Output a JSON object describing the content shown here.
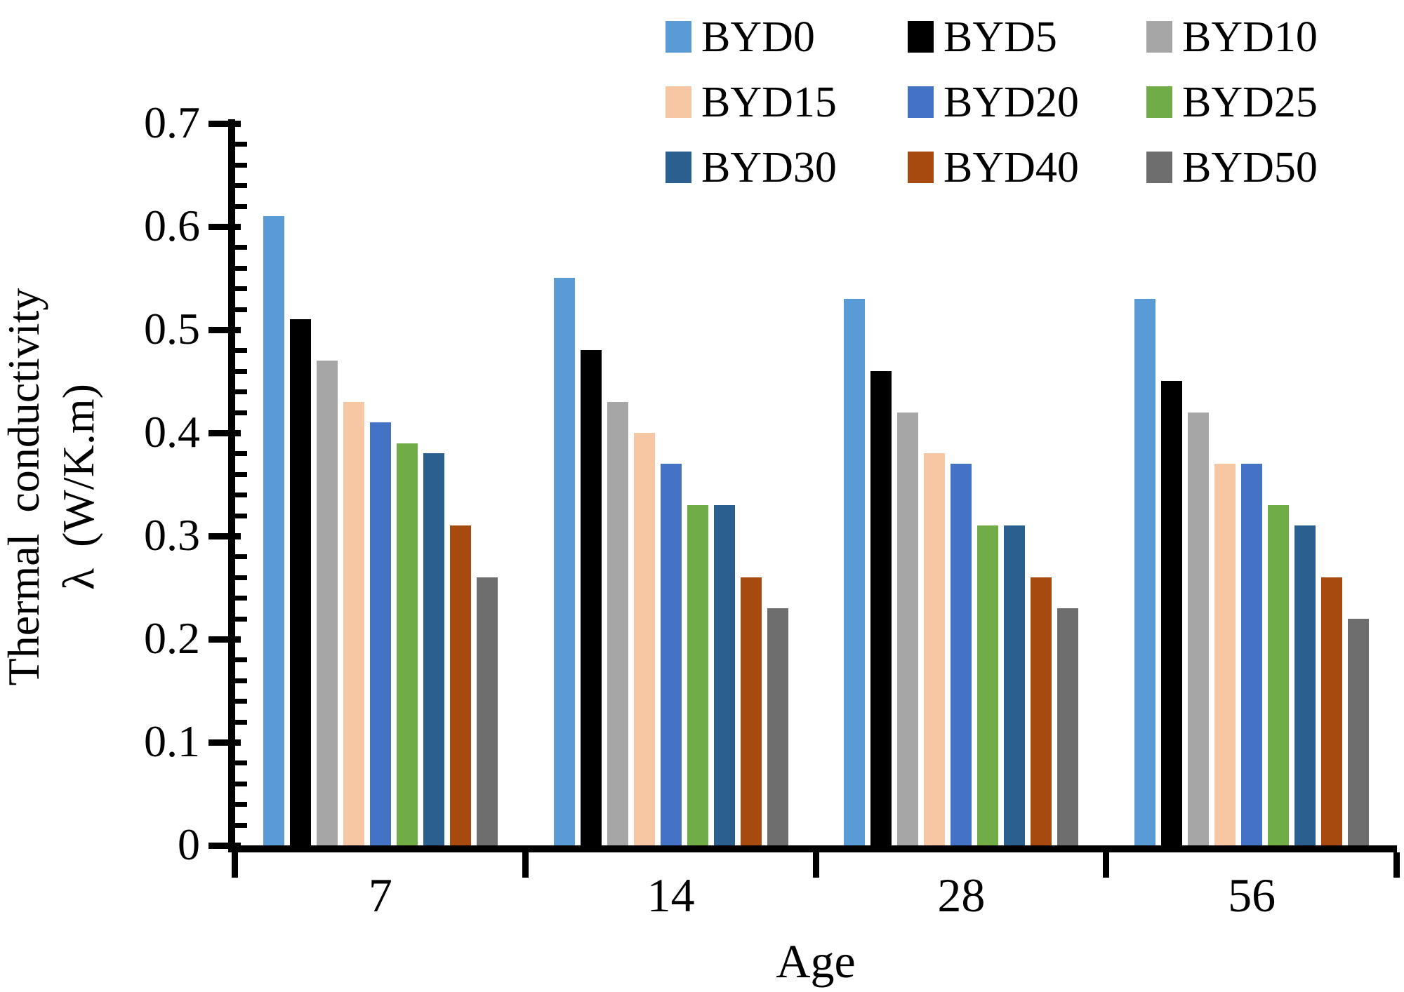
{
  "chart_data": {
    "type": "bar",
    "title": "",
    "categories": [
      "7",
      "14",
      "28",
      "56"
    ],
    "series": [
      {
        "name": "BYD0",
        "color": "#5B9BD5",
        "values": [
          0.61,
          0.55,
          0.53,
          0.53
        ]
      },
      {
        "name": "BYD5",
        "color": "#000000",
        "values": [
          0.51,
          0.48,
          0.46,
          0.45
        ]
      },
      {
        "name": "BYD10",
        "color": "#A6A6A6",
        "values": [
          0.47,
          0.43,
          0.42,
          0.42
        ]
      },
      {
        "name": "BYD15",
        "color": "#F6C7A2",
        "values": [
          0.43,
          0.4,
          0.38,
          0.37
        ]
      },
      {
        "name": "BYD20",
        "color": "#4472C4",
        "values": [
          0.41,
          0.37,
          0.37,
          0.37
        ]
      },
      {
        "name": "BYD25",
        "color": "#70AD47",
        "values": [
          0.39,
          0.33,
          0.31,
          0.33
        ]
      },
      {
        "name": "BYD30",
        "color": "#2A5F8F",
        "values": [
          0.38,
          0.33,
          0.31,
          0.31
        ]
      },
      {
        "name": "BYD40",
        "color": "#A64A0F",
        "values": [
          0.31,
          0.26,
          0.26,
          0.26
        ]
      },
      {
        "name": "BYD50",
        "color": "#6E6E6E",
        "values": [
          0.26,
          0.23,
          0.23,
          0.22
        ]
      }
    ],
    "xlabel": "Age",
    "ylabel_line1": "Thermal conductivity",
    "ylabel_line2": "λ (W/K.m)",
    "ylim": [
      0,
      0.7
    ],
    "ytick_step": 0.1,
    "yminor_step": 0.02,
    "ytick_labels": [
      "0",
      "0.1",
      "0.2",
      "0.3",
      "0.4",
      "0.5",
      "0.6",
      "0.7"
    ],
    "legend_position": "top-right",
    "legend_columns": 3,
    "grid": false,
    "axis_color": "#000000",
    "background_color": "#FFFFFF"
  }
}
